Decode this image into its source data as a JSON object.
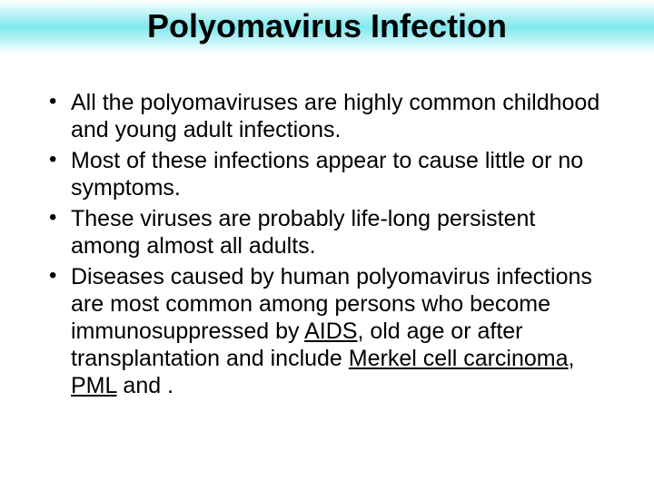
{
  "slide": {
    "title": "Polyomavirus Infection",
    "title_fontsize": 36,
    "title_fontweight": "bold",
    "title_color": "#000000",
    "title_bg_gradient": [
      "#ffffff",
      "#7fe8ee",
      "#ffffff"
    ],
    "body_fontsize": 25,
    "body_color": "#000000",
    "background_color": "#ffffff",
    "bullets": [
      {
        "text": "All the polyomaviruses are highly common childhood and young adult infections."
      },
      {
        "text": "Most of these infections appear to cause little or no symptoms."
      },
      {
        "text": "These viruses are probably life-long persistent among almost all adults."
      },
      {
        "pre": "Diseases caused by human polyomavirus infections are most common among persons who become immunosuppressed by ",
        "link1": "AIDS",
        "mid1": ", old age or after transplantation and include ",
        "link2": "Merkel cell carcinoma",
        "mid2": ", ",
        "link3": "PML",
        "post": " and ."
      }
    ]
  }
}
